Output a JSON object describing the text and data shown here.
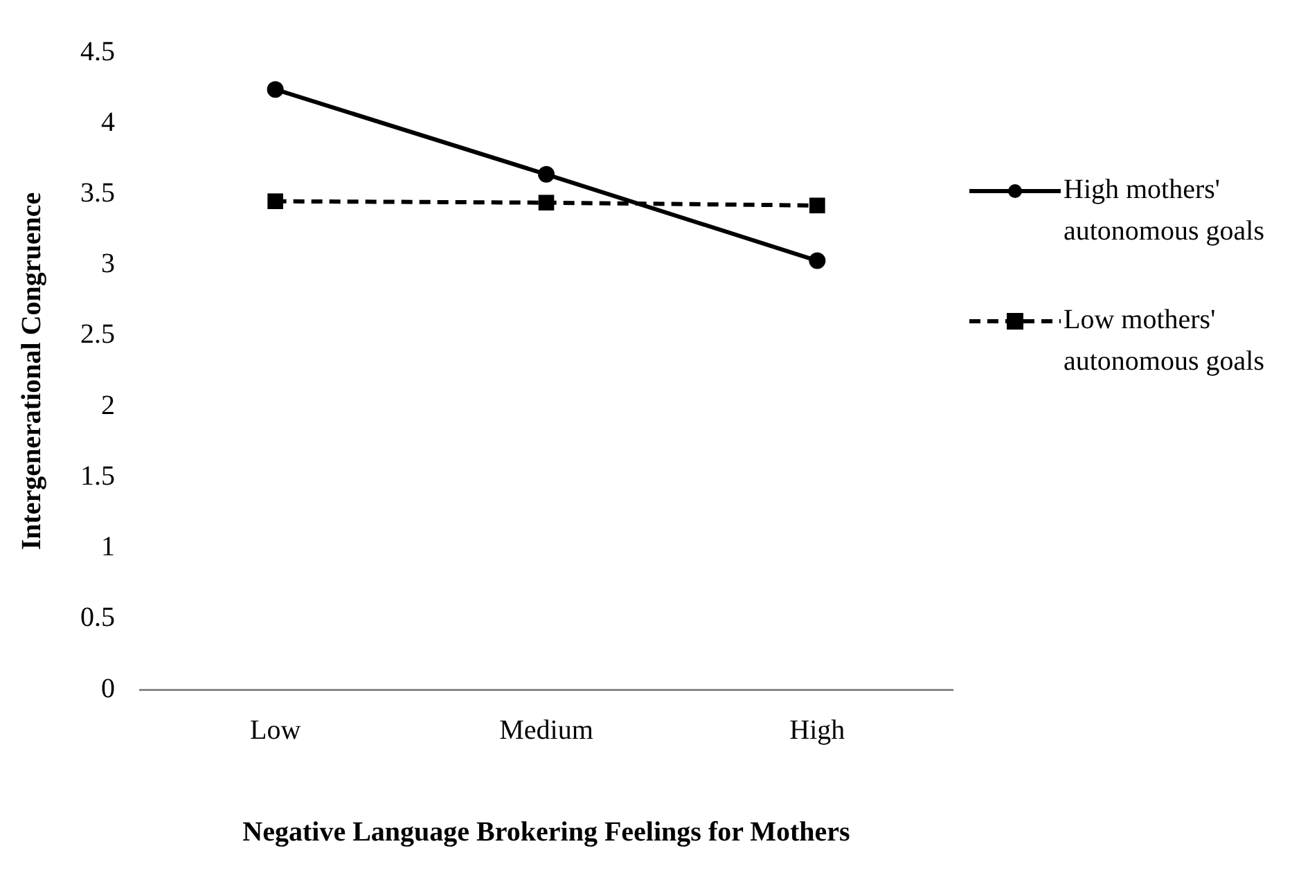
{
  "chart_data": {
    "type": "line",
    "xlabel": "Negative Language Brokering Feelings for Mothers",
    "ylabel": "Intergenerational Congruence",
    "categories": [
      "Low",
      "Medium",
      "High"
    ],
    "series": [
      {
        "name": "High mothers' autonomous goals",
        "color": "#000000",
        "values": [
          4.24,
          3.64,
          3.03
        ],
        "marker": "circle",
        "line_style": "solid"
      },
      {
        "name": "Low mothers' autonomous goals",
        "color": "#000000",
        "values": [
          3.45,
          3.44,
          3.42
        ],
        "marker": "square",
        "line_style": "dashed"
      }
    ],
    "ylim": [
      0,
      4.5
    ],
    "yticks": [
      0,
      0.5,
      1,
      1.5,
      2,
      2.5,
      3,
      3.5,
      4,
      4.5
    ],
    "grid": false,
    "legend": "right"
  }
}
